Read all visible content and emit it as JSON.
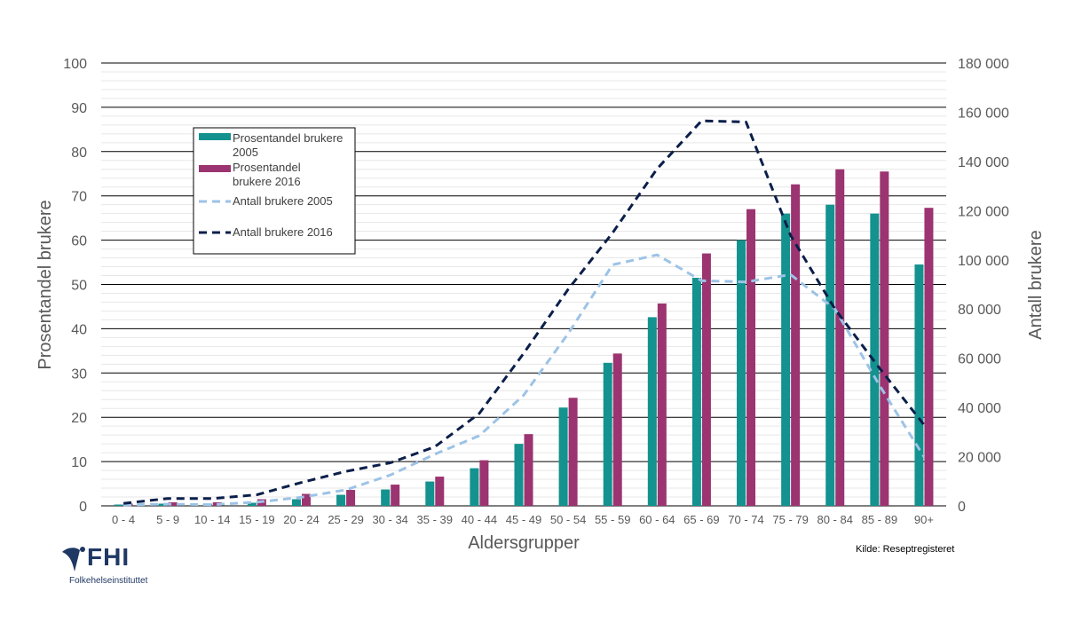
{
  "chart_data": {
    "type": "bar+line",
    "categories": [
      "0 - 4",
      "5 - 9",
      "10 - 14",
      "15 - 19",
      "20 - 24",
      "25 - 29",
      "30 - 34",
      "35 - 39",
      "40 - 44",
      "45 - 49",
      "50 - 54",
      "55 - 59",
      "60 - 64",
      "65 - 69",
      "70 - 74",
      "75 - 79",
      "80 - 84",
      "85 - 89",
      "90+"
    ],
    "bar_series": [
      {
        "name": "Prosentandel brukere 2005",
        "color": "#13928f",
        "values": [
          0.3,
          0.5,
          0.5,
          0.7,
          1.5,
          2.5,
          3.7,
          5.5,
          8.5,
          14.0,
          22.2,
          32.3,
          42.6,
          51.5,
          60.0,
          66.0,
          68.0,
          66.0,
          54.5
        ]
      },
      {
        "name": "Prosentandel brukere 2016",
        "color": "#9b3470",
        "values": [
          0.5,
          0.8,
          0.8,
          1.5,
          2.7,
          3.6,
          4.8,
          6.6,
          10.3,
          16.2,
          24.4,
          34.4,
          45.7,
          57.0,
          67.0,
          72.6,
          76.0,
          75.5,
          67.3
        ]
      }
    ],
    "line_series": [
      {
        "name": "Antall brukere 2005",
        "color": "#9dc3e6",
        "dash": "dashed",
        "values": [
          400,
          700,
          500,
          1500,
          3500,
          6500,
          12500,
          21000,
          28500,
          45000,
          70000,
          98000,
          102000,
          91500,
          91000,
          94000,
          80000,
          49000,
          20000
        ]
      },
      {
        "name": "Antall brukere 2016",
        "color": "#0b1f4a",
        "dash": "dashed",
        "values": [
          1000,
          3000,
          3000,
          4500,
          9500,
          14000,
          17500,
          24000,
          37500,
          62000,
          88000,
          111000,
          137000,
          156500,
          156000,
          110000,
          80000,
          56000,
          33000
        ]
      }
    ],
    "legend": [
      "Prosentandel brukere 2005",
      " Prosentandel brukere 2016",
      "Antall brukere 2005",
      "Antall brukere 2016"
    ],
    "xlabel": "Aldersgrupper",
    "ylabel_left": "Prosentandel brukere",
    "ylabel_right": "Antall brukere",
    "ylim_left": [
      0,
      100
    ],
    "ylim_right": [
      0,
      180000
    ],
    "left_ticks": [
      "0",
      "10",
      "20",
      "30",
      "40",
      "50",
      "60",
      "70",
      "80",
      "90",
      "100"
    ],
    "right_ticks": [
      "0",
      "20 000",
      "40 000",
      "60 000",
      "80 000",
      "100 000",
      "120 000",
      "140 000",
      "160 000",
      "180 000"
    ],
    "grid": true,
    "legend_position": "top-left"
  },
  "source": "Kilde: Reseptregisteret",
  "logo": {
    "name": "FHI",
    "subtitle": "Folkehelseinstituttet"
  }
}
